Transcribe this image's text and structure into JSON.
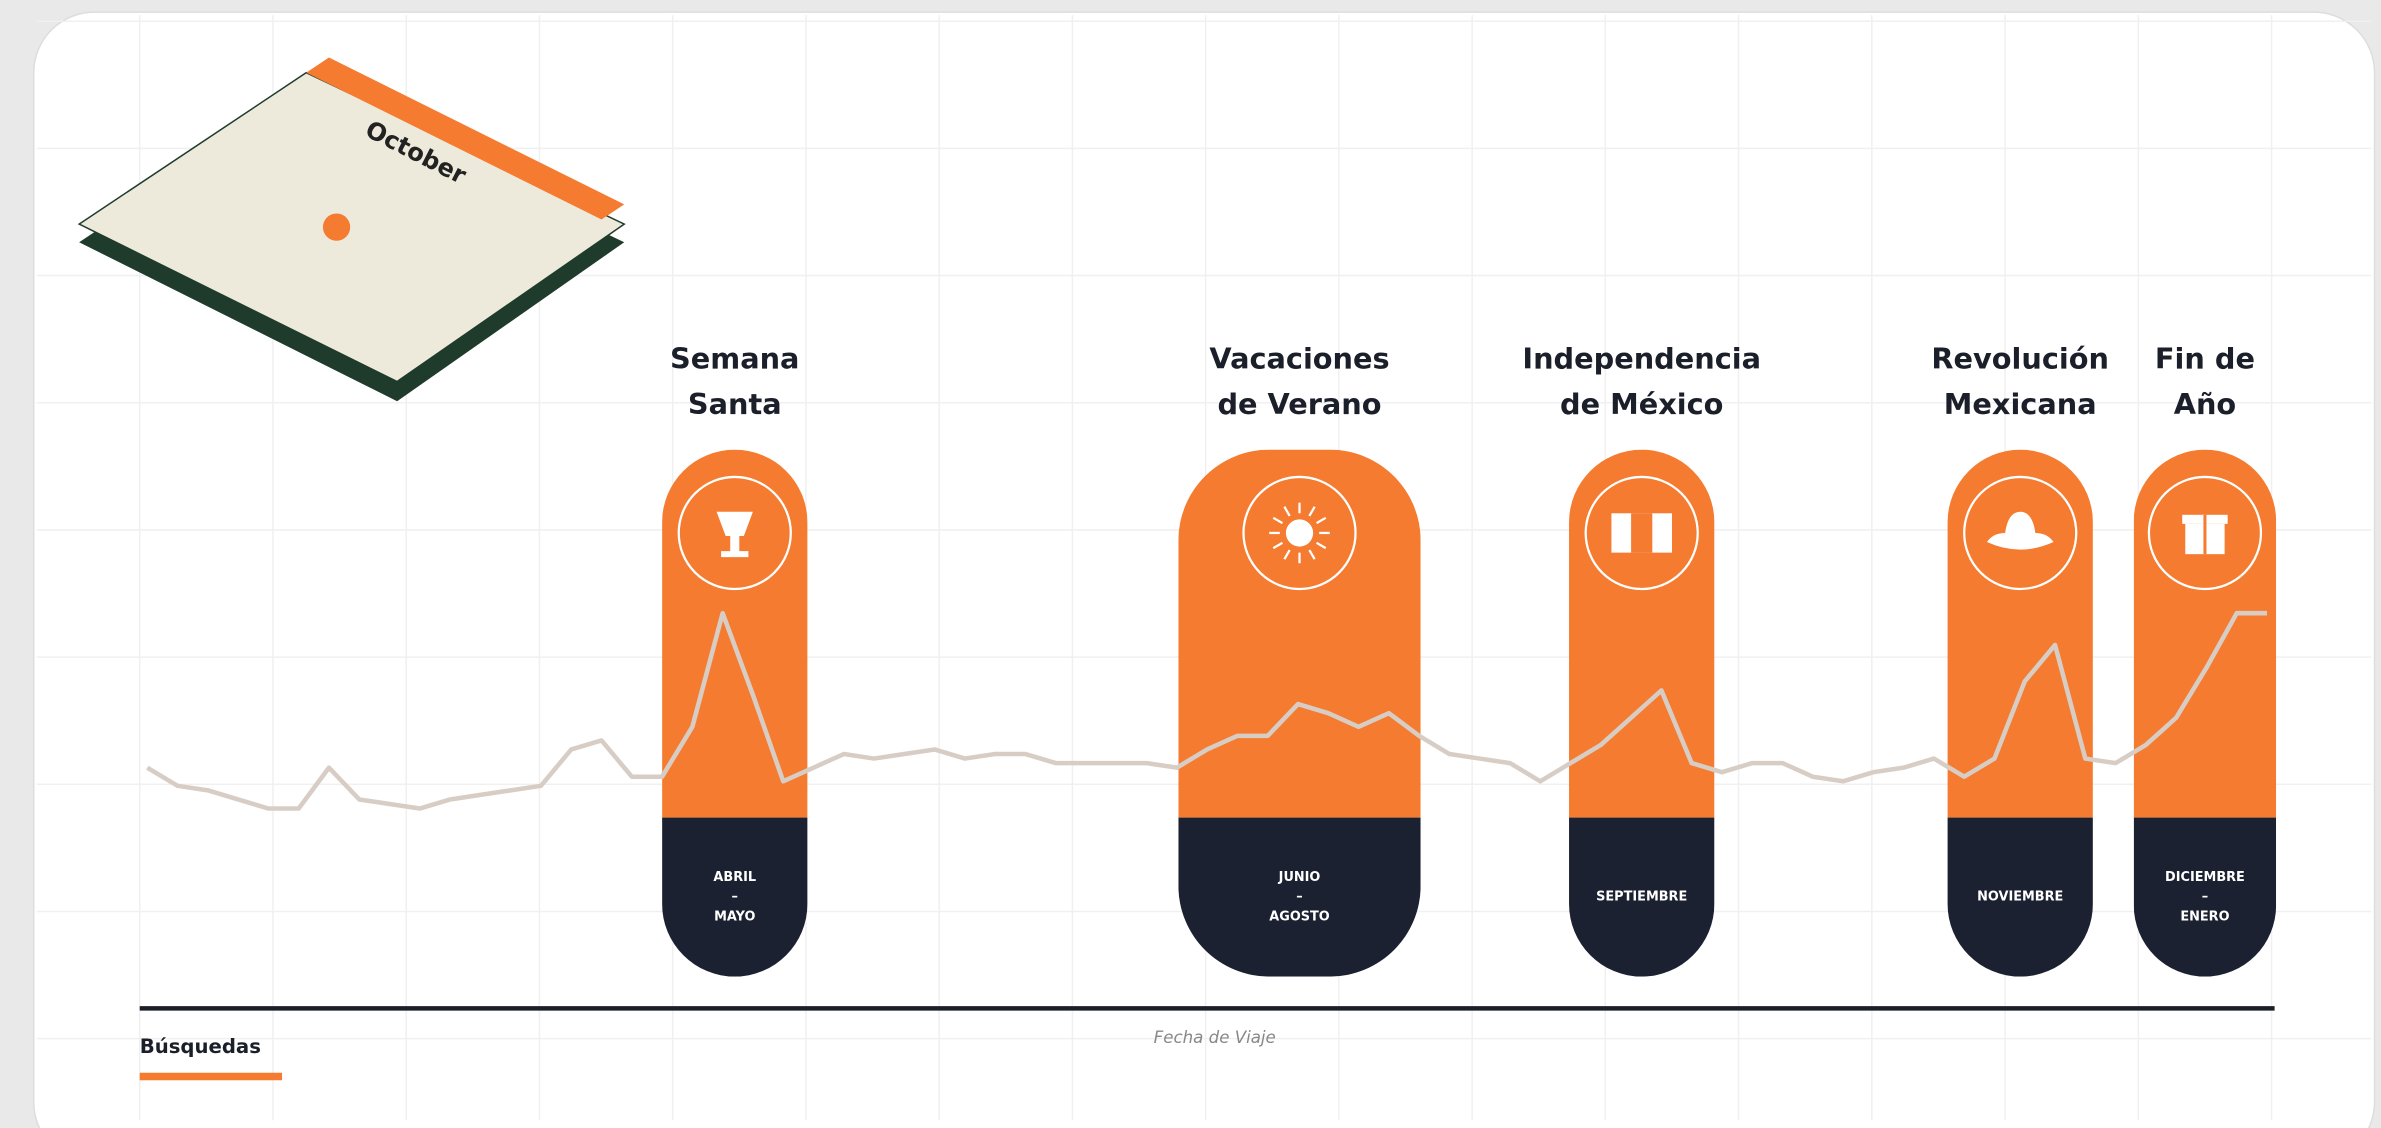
{
  "chart_data": {
    "type": "line",
    "calendar_label": "October",
    "x_axis_label": "Fecha de Viaje",
    "legend_color": "#f47b30",
    "ylim": [
      0,
      100
    ],
    "series": [
      {
        "name": "Búsquedas",
        "color": "#d8cdc5",
        "values": [
          53,
          49,
          48,
          46,
          44,
          44,
          53,
          46,
          45,
          44,
          46,
          47,
          48,
          49,
          57,
          59,
          51,
          51,
          62,
          87,
          69,
          50,
          53,
          56,
          55,
          56,
          57,
          55,
          56,
          56,
          54,
          54,
          54,
          54,
          53,
          57,
          60,
          60,
          67,
          65,
          62,
          65,
          60,
          56,
          55,
          54,
          50,
          54,
          58,
          64,
          70,
          54,
          52,
          54,
          54,
          51,
          50,
          52,
          53,
          55,
          51,
          55,
          72,
          80,
          55,
          54,
          58,
          64,
          75,
          87,
          87
        ]
      }
    ],
    "events": [
      {
        "title": [
          "Semana",
          "Santa"
        ],
        "period": [
          "ABRIL",
          "–",
          "MAYO"
        ]
      },
      {
        "title": [
          "Vacaciones",
          "de Verano"
        ],
        "period": [
          "JUNIO",
          "–",
          "AGOSTO"
        ]
      },
      {
        "title": [
          "Independencia",
          "de México"
        ],
        "period": [
          "SEPTIEMBRE"
        ]
      },
      {
        "title": [
          "Revolución",
          "Mexicana"
        ],
        "period": [
          "NOVIEMBRE"
        ]
      },
      {
        "title": [
          "Fin de",
          "Año"
        ],
        "period": [
          "DICIEMBRE",
          "–",
          "ENERO"
        ]
      }
    ]
  }
}
